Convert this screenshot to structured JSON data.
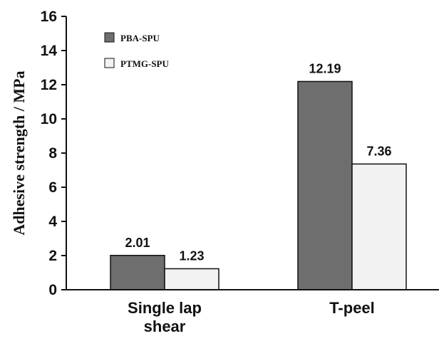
{
  "chart_data": {
    "type": "bar",
    "ylabel": "Adhesive strength / MPa",
    "ylim": [
      0,
      16
    ],
    "yticks": [
      "0",
      "2",
      "4",
      "6",
      "8",
      "10",
      "12",
      "14",
      "16"
    ],
    "categories": [
      {
        "lines": [
          "Single lap",
          "shear"
        ]
      },
      {
        "lines": [
          "T-peel"
        ]
      }
    ],
    "series": [
      {
        "name": "PBA-SPU",
        "values": [
          2.01,
          12.19
        ],
        "labels": [
          "2.01",
          "12.19"
        ],
        "color": "#6e6e6e"
      },
      {
        "name": "PTMG-SPU",
        "values": [
          1.23,
          7.36
        ],
        "labels": [
          "1.23",
          "7.36"
        ],
        "color": "#f2f2f2"
      }
    ],
    "legend": "top-left",
    "grid": false
  }
}
